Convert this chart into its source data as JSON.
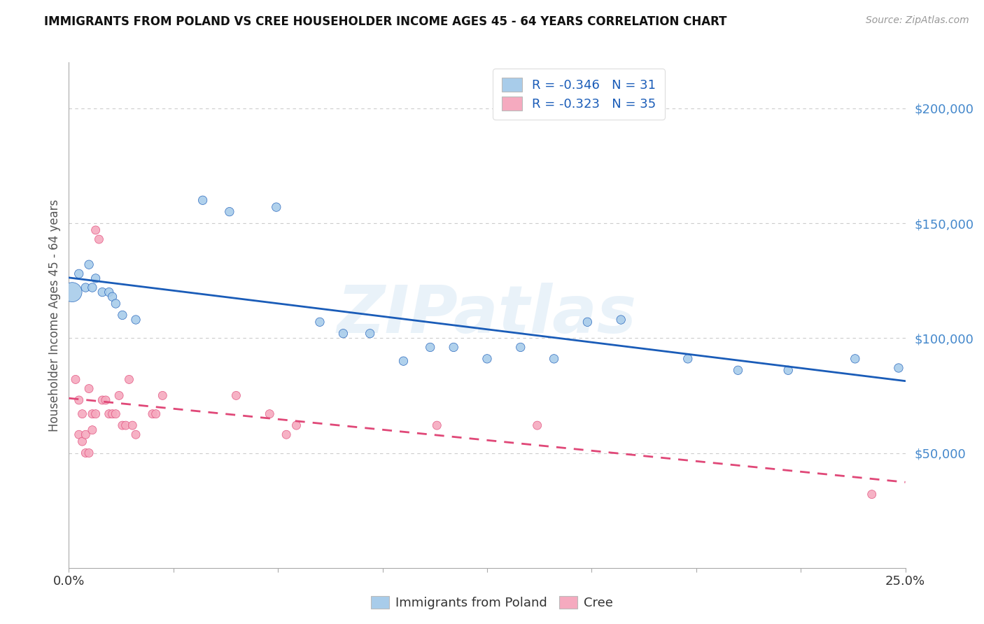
{
  "title": "IMMIGRANTS FROM POLAND VS CREE HOUSEHOLDER INCOME AGES 45 - 64 YEARS CORRELATION CHART",
  "source": "Source: ZipAtlas.com",
  "ylabel": "Householder Income Ages 45 - 64 years",
  "xlim": [
    0.0,
    0.25
  ],
  "ylim": [
    0,
    220000
  ],
  "yticks": [
    50000,
    100000,
    150000,
    200000
  ],
  "ytick_labels": [
    "$50,000",
    "$100,000",
    "$150,000",
    "$200,000"
  ],
  "xtick_positions": [
    0.0,
    0.03125,
    0.0625,
    0.09375,
    0.125,
    0.15625,
    0.1875,
    0.21875,
    0.25
  ],
  "xtick_labels_show": [
    "0.0%",
    "",
    "",
    "",
    "",
    "",
    "",
    "",
    "25.0%"
  ],
  "watermark": "ZIPatlas",
  "legend_label1": "R = -0.346   N = 31",
  "legend_label2": "R = -0.323   N = 35",
  "legend_entry1": "Immigrants from Poland",
  "legend_entry2": "Cree",
  "poland_color": "#A8CCEA",
  "cree_color": "#F5AABF",
  "poland_line_color": "#1A5CB8",
  "cree_line_color": "#E04878",
  "poland_scatter": [
    [
      0.001,
      120000
    ],
    [
      0.003,
      128000
    ],
    [
      0.005,
      122000
    ],
    [
      0.006,
      132000
    ],
    [
      0.007,
      122000
    ],
    [
      0.008,
      126000
    ],
    [
      0.01,
      120000
    ],
    [
      0.012,
      120000
    ],
    [
      0.013,
      118000
    ],
    [
      0.014,
      115000
    ],
    [
      0.016,
      110000
    ],
    [
      0.02,
      108000
    ],
    [
      0.04,
      160000
    ],
    [
      0.048,
      155000
    ],
    [
      0.062,
      157000
    ],
    [
      0.075,
      107000
    ],
    [
      0.082,
      102000
    ],
    [
      0.09,
      102000
    ],
    [
      0.1,
      90000
    ],
    [
      0.108,
      96000
    ],
    [
      0.115,
      96000
    ],
    [
      0.125,
      91000
    ],
    [
      0.135,
      96000
    ],
    [
      0.145,
      91000
    ],
    [
      0.155,
      107000
    ],
    [
      0.165,
      108000
    ],
    [
      0.185,
      91000
    ],
    [
      0.2,
      86000
    ],
    [
      0.215,
      86000
    ],
    [
      0.235,
      91000
    ],
    [
      0.248,
      87000
    ]
  ],
  "poland_big_idx": 0,
  "cree_scatter": [
    [
      0.002,
      82000
    ],
    [
      0.003,
      73000
    ],
    [
      0.003,
      58000
    ],
    [
      0.004,
      67000
    ],
    [
      0.004,
      55000
    ],
    [
      0.005,
      50000
    ],
    [
      0.005,
      58000
    ],
    [
      0.006,
      50000
    ],
    [
      0.006,
      78000
    ],
    [
      0.007,
      60000
    ],
    [
      0.007,
      67000
    ],
    [
      0.008,
      67000
    ],
    [
      0.008,
      147000
    ],
    [
      0.009,
      143000
    ],
    [
      0.01,
      73000
    ],
    [
      0.011,
      73000
    ],
    [
      0.012,
      67000
    ],
    [
      0.013,
      67000
    ],
    [
      0.014,
      67000
    ],
    [
      0.015,
      75000
    ],
    [
      0.016,
      62000
    ],
    [
      0.017,
      62000
    ],
    [
      0.018,
      82000
    ],
    [
      0.019,
      62000
    ],
    [
      0.02,
      58000
    ],
    [
      0.025,
      67000
    ],
    [
      0.026,
      67000
    ],
    [
      0.028,
      75000
    ],
    [
      0.05,
      75000
    ],
    [
      0.06,
      67000
    ],
    [
      0.065,
      58000
    ],
    [
      0.068,
      62000
    ],
    [
      0.11,
      62000
    ],
    [
      0.14,
      62000
    ],
    [
      0.24,
      32000
    ]
  ],
  "background_color": "#FFFFFF",
  "grid_color": "#CCCCCC",
  "title_color": "#111111",
  "source_color": "#999999",
  "axis_label_color": "#555555",
  "tick_label_color": "#4488CC"
}
